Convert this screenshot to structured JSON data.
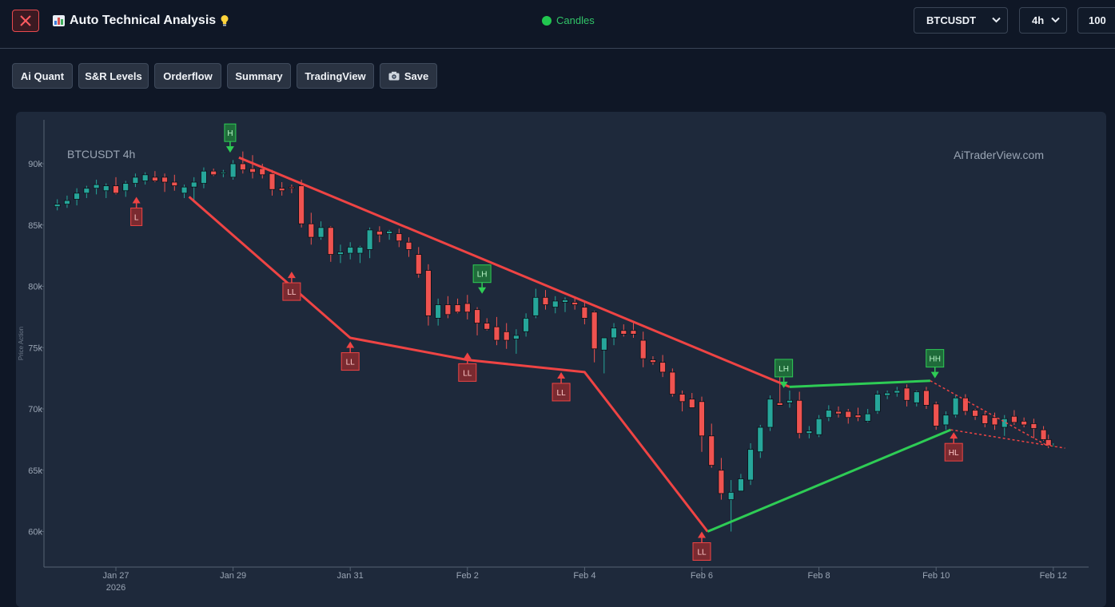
{
  "app": {
    "title": "Auto Technical Analysis",
    "status": "Candles",
    "symbol": "BTCUSDT",
    "interval": "4h",
    "limit": "100",
    "colors": {
      "bull": "#26a69a",
      "bear": "#ef5350",
      "trend_up": "#2ecc55",
      "trend_down": "#ef4444",
      "bg": "#0f1726",
      "panel": "#1e293b"
    }
  },
  "toolbar": {
    "buttons": [
      {
        "label": "Ai Quant",
        "icon": ""
      },
      {
        "label": "S&R Levels",
        "icon": ""
      },
      {
        "label": "Orderflow",
        "icon": ""
      },
      {
        "label": "Summary",
        "icon": ""
      },
      {
        "label": "TradingView",
        "icon": ""
      },
      {
        "label": "Save",
        "icon": "camera-icon"
      }
    ]
  },
  "chart_data": {
    "type": "candlestick",
    "title": "BTCUSDT 4h",
    "watermark": "AiTraderView.com",
    "ylabel": "Price Action",
    "xlabel": "",
    "ylim": [
      57000,
      93000
    ],
    "y_ticks": [
      "60k",
      "65k",
      "70k",
      "75k",
      "80k",
      "85k",
      "90k"
    ],
    "y_tick_values": [
      60000,
      65000,
      70000,
      75000,
      80000,
      85000,
      90000
    ],
    "x_ticks": [
      {
        "label": "Jan 27",
        "sub": "2026",
        "day": 0
      },
      {
        "label": "Jan 29",
        "sub": "",
        "day": 2
      },
      {
        "label": "Jan 31",
        "sub": "",
        "day": 4
      },
      {
        "label": "Feb 2",
        "sub": "",
        "day": 6
      },
      {
        "label": "Feb 4",
        "sub": "",
        "day": 8
      },
      {
        "label": "Feb 6",
        "sub": "",
        "day": 10
      },
      {
        "label": "Feb 8",
        "sub": "",
        "day": 12
      },
      {
        "label": "Feb 10",
        "sub": "",
        "day": 14
      },
      {
        "label": "Feb 12",
        "sub": "",
        "day": 16
      }
    ],
    "xlim_days": [
      -1.2,
      16.4
    ],
    "candles": [
      [
        -1.0,
        86500,
        87100,
        86200,
        86700
      ],
      [
        -0.833,
        86700,
        87400,
        86400,
        87000
      ],
      [
        -0.667,
        87100,
        88000,
        86600,
        87600
      ],
      [
        -0.5,
        87600,
        88200,
        87200,
        88000
      ],
      [
        -0.333,
        88000,
        88700,
        87500,
        88300
      ],
      [
        -0.167,
        87800,
        88400,
        87200,
        88200
      ],
      [
        0.0,
        88200,
        88900,
        87500,
        87600
      ],
      [
        0.167,
        87800,
        88600,
        87300,
        88400
      ],
      [
        0.333,
        88400,
        89200,
        88100,
        88900
      ],
      [
        0.5,
        88600,
        89300,
        88300,
        89100
      ],
      [
        0.667,
        88900,
        89400,
        88500,
        88600
      ],
      [
        0.833,
        88900,
        89200,
        87700,
        88500
      ],
      [
        1.0,
        88500,
        89100,
        87800,
        88200
      ],
      [
        1.167,
        87600,
        88300,
        87200,
        88100
      ],
      [
        1.333,
        88100,
        88900,
        87000,
        88500
      ],
      [
        1.5,
        88400,
        89700,
        88000,
        89400
      ],
      [
        1.667,
        89400,
        89600,
        89000,
        89100
      ],
      [
        1.833,
        89200,
        89500,
        88900,
        89300
      ],
      [
        2.0,
        88900,
        90300,
        88700,
        90000
      ],
      [
        2.167,
        90000,
        91000,
        89200,
        89500
      ],
      [
        2.333,
        89600,
        90700,
        88800,
        89300
      ],
      [
        2.5,
        89600,
        90000,
        88800,
        89100
      ],
      [
        2.667,
        89200,
        89500,
        87400,
        87900
      ],
      [
        2.833,
        88000,
        88500,
        87400,
        87800
      ],
      [
        3.0,
        88100,
        88300,
        87600,
        88000
      ],
      [
        3.167,
        88200,
        88700,
        84800,
        85100
      ],
      [
        3.333,
        85100,
        86000,
        83400,
        84000
      ],
      [
        3.5,
        84000,
        85300,
        83800,
        84800
      ],
      [
        3.667,
        84800,
        84900,
        82000,
        82600
      ],
      [
        3.833,
        82600,
        83400,
        81900,
        82800
      ],
      [
        4.0,
        82700,
        83600,
        82200,
        83200
      ],
      [
        4.167,
        82700,
        83300,
        81900,
        83200
      ],
      [
        4.333,
        83000,
        84800,
        82300,
        84600
      ],
      [
        4.5,
        84500,
        84900,
        83600,
        84200
      ],
      [
        4.667,
        84300,
        84600,
        83800,
        84500
      ],
      [
        4.833,
        84300,
        84700,
        83200,
        83700
      ],
      [
        5.0,
        83600,
        84000,
        82400,
        83000
      ],
      [
        5.167,
        82600,
        83200,
        80700,
        81000
      ],
      [
        5.333,
        81300,
        81800,
        76800,
        77600
      ],
      [
        5.5,
        77400,
        79000,
        76800,
        78500
      ],
      [
        5.667,
        78500,
        79200,
        77400,
        77700
      ],
      [
        5.833,
        78500,
        79000,
        77800,
        77900
      ],
      [
        6.0,
        78600,
        79300,
        77300,
        77900
      ],
      [
        6.167,
        78100,
        78300,
        76000,
        77000
      ],
      [
        6.333,
        77000,
        77400,
        76400,
        76500
      ],
      [
        6.5,
        76700,
        77500,
        75200,
        75600
      ],
      [
        6.667,
        76300,
        77000,
        74900,
        75600
      ],
      [
        6.833,
        75700,
        76500,
        74500,
        76000
      ],
      [
        7.0,
        76300,
        77800,
        75900,
        77400
      ],
      [
        7.167,
        77600,
        79800,
        77400,
        79100
      ],
      [
        7.333,
        79100,
        79700,
        78100,
        78500
      ],
      [
        7.5,
        78300,
        79200,
        77800,
        78800
      ],
      [
        7.667,
        78700,
        79100,
        77900,
        78900
      ],
      [
        7.833,
        78700,
        79100,
        78100,
        78500
      ],
      [
        8.0,
        78300,
        78800,
        76900,
        77400
      ],
      [
        8.167,
        77900,
        78000,
        73800,
        74900
      ],
      [
        8.333,
        74800,
        75800,
        72900,
        75800
      ],
      [
        8.5,
        75800,
        77000,
        75200,
        76600
      ],
      [
        8.667,
        76400,
        76900,
        75900,
        76100
      ],
      [
        8.833,
        76400,
        77000,
        75800,
        76100
      ],
      [
        9.0,
        75600,
        76300,
        73400,
        74100
      ],
      [
        9.167,
        74000,
        74300,
        73600,
        73800
      ],
      [
        9.333,
        73800,
        74400,
        72600,
        73000
      ],
      [
        9.5,
        73000,
        73300,
        71000,
        71200
      ],
      [
        9.667,
        71200,
        71500,
        69800,
        70600
      ],
      [
        9.833,
        70800,
        71300,
        70100,
        70100
      ],
      [
        10.0,
        70600,
        71000,
        66500,
        67800
      ],
      [
        10.167,
        67800,
        68800,
        65200,
        65400
      ],
      [
        10.333,
        65000,
        66000,
        62600,
        63100
      ],
      [
        10.5,
        62600,
        64200,
        60000,
        63200
      ],
      [
        10.667,
        63300,
        64700,
        63300,
        64300
      ],
      [
        10.833,
        64200,
        67200,
        63800,
        66700
      ],
      [
        11.0,
        66500,
        68700,
        66000,
        68500
      ],
      [
        11.167,
        68500,
        71100,
        68200,
        70800
      ],
      [
        11.333,
        70500,
        72800,
        70300,
        70300
      ],
      [
        11.5,
        70500,
        71500,
        70100,
        70700
      ],
      [
        11.667,
        70700,
        71400,
        67600,
        68000
      ],
      [
        11.833,
        68000,
        68600,
        67600,
        68200
      ],
      [
        12.0,
        67900,
        69500,
        67700,
        69200
      ],
      [
        12.167,
        69300,
        70300,
        69000,
        69900
      ],
      [
        12.333,
        69800,
        70200,
        69300,
        69600
      ],
      [
        12.5,
        69800,
        70000,
        68800,
        69300
      ],
      [
        12.667,
        69500,
        70100,
        69000,
        69300
      ],
      [
        12.833,
        69000,
        70000,
        68900,
        69600
      ],
      [
        13.0,
        69800,
        71500,
        69600,
        71200
      ],
      [
        13.167,
        71100,
        71500,
        70800,
        71300
      ],
      [
        13.333,
        71300,
        71800,
        71000,
        71500
      ],
      [
        13.5,
        71700,
        72000,
        70200,
        70700
      ],
      [
        13.667,
        70500,
        71500,
        70200,
        71400
      ],
      [
        13.833,
        71500,
        71800,
        70000,
        70300
      ],
      [
        14.0,
        70400,
        70600,
        68300,
        68600
      ],
      [
        14.167,
        68700,
        69800,
        68300,
        69500
      ],
      [
        14.333,
        69500,
        71100,
        69300,
        70900
      ],
      [
        14.5,
        70900,
        71200,
        69500,
        69800
      ],
      [
        14.667,
        69900,
        70000,
        69100,
        69400
      ],
      [
        14.833,
        69500,
        69800,
        68500,
        68800
      ],
      [
        15.0,
        69300,
        69700,
        68300,
        68700
      ],
      [
        15.167,
        68500,
        69500,
        67800,
        69200
      ],
      [
        15.333,
        69400,
        69900,
        68700,
        68900
      ],
      [
        15.5,
        69000,
        69300,
        68500,
        68700
      ],
      [
        15.667,
        68800,
        69200,
        67600,
        68400
      ],
      [
        15.833,
        68300,
        68600,
        67400,
        67500
      ],
      [
        15.917,
        67500,
        67900,
        66800,
        67000
      ],
      [
        16.0,
        67000,
        67200,
        66900,
        67000
      ]
    ],
    "trend_lines": [
      {
        "color": "down",
        "dashed": false,
        "points": [
          [
            1.25,
            87300
          ],
          [
            4.0,
            75800
          ],
          [
            6.0,
            74000
          ],
          [
            8.0,
            73000
          ],
          [
            10.1,
            60000
          ]
        ]
      },
      {
        "color": "down",
        "dashed": false,
        "points": [
          [
            2.1,
            90500
          ],
          [
            11.5,
            71800
          ]
        ]
      },
      {
        "color": "up",
        "dashed": false,
        "points": [
          [
            10.1,
            60000
          ],
          [
            14.25,
            68300
          ]
        ]
      },
      {
        "color": "up",
        "dashed": false,
        "points": [
          [
            11.5,
            71800
          ],
          [
            13.9,
            72300
          ]
        ]
      },
      {
        "color": "down",
        "dashed": true,
        "points": [
          [
            13.9,
            72300
          ],
          [
            15.9,
            67000
          ]
        ]
      },
      {
        "color": "down",
        "dashed": true,
        "points": [
          [
            14.25,
            68300
          ],
          [
            16.2,
            66800
          ]
        ]
      }
    ],
    "pivots": [
      {
        "label": "H",
        "type": "high",
        "day": 1.95,
        "price": 90900
      },
      {
        "label": "L",
        "type": "low",
        "day": 0.35,
        "price": 87300
      },
      {
        "label": "LL",
        "type": "low",
        "day": 3.0,
        "price": 81200
      },
      {
        "label": "LL",
        "type": "low",
        "day": 4.0,
        "price": 75500
      },
      {
        "label": "LH",
        "type": "high",
        "day": 6.25,
        "price": 79400
      },
      {
        "label": "LL",
        "type": "low",
        "day": 6.0,
        "price": 74600
      },
      {
        "label": "LL",
        "type": "low",
        "day": 7.6,
        "price": 73000
      },
      {
        "label": "LL",
        "type": "low",
        "day": 10.0,
        "price": 60000
      },
      {
        "label": "LH",
        "type": "high",
        "day": 11.4,
        "price": 71700
      },
      {
        "label": "HH",
        "type": "high",
        "day": 13.98,
        "price": 72500
      },
      {
        "label": "HL",
        "type": "low",
        "day": 14.3,
        "price": 68100
      }
    ]
  }
}
